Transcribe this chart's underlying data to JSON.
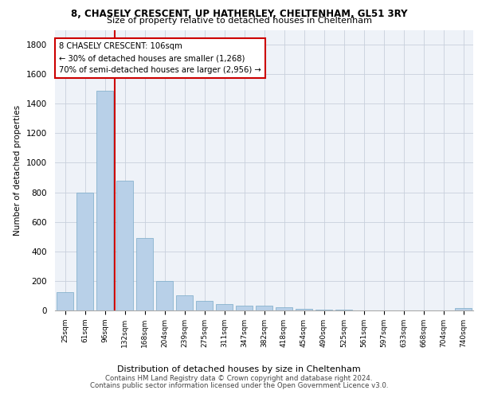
{
  "title1": "8, CHASELY CRESCENT, UP HATHERLEY, CHELTENHAM, GL51 3RY",
  "title2": "Size of property relative to detached houses in Cheltenham",
  "xlabel": "Distribution of detached houses by size in Cheltenham",
  "ylabel": "Number of detached properties",
  "categories": [
    "25sqm",
    "61sqm",
    "96sqm",
    "132sqm",
    "168sqm",
    "204sqm",
    "239sqm",
    "275sqm",
    "311sqm",
    "347sqm",
    "382sqm",
    "418sqm",
    "454sqm",
    "490sqm",
    "525sqm",
    "561sqm",
    "597sqm",
    "633sqm",
    "668sqm",
    "704sqm",
    "740sqm"
  ],
  "values": [
    125,
    800,
    1490,
    880,
    490,
    200,
    105,
    65,
    45,
    35,
    30,
    20,
    13,
    5,
    3,
    2,
    1,
    1,
    1,
    1,
    15
  ],
  "bar_color": "#b8d0e8",
  "bar_edgecolor": "#7aaac8",
  "vline_x_data": 2.5,
  "vline_color": "#cc0000",
  "annotation_line1": "8 CHASELY CRESCENT: 106sqm",
  "annotation_line2": "← 30% of detached houses are smaller (1,268)",
  "annotation_line3": "70% of semi-detached houses are larger (2,956) →",
  "annotation_box_color": "#cc0000",
  "ylim": [
    0,
    1900
  ],
  "yticks": [
    0,
    200,
    400,
    600,
    800,
    1000,
    1200,
    1400,
    1600,
    1800
  ],
  "footer1": "Contains HM Land Registry data © Crown copyright and database right 2024.",
  "footer2": "Contains public sector information licensed under the Open Government Licence v3.0.",
  "bg_color": "#eef2f8",
  "grid_color": "#c8d0dc"
}
